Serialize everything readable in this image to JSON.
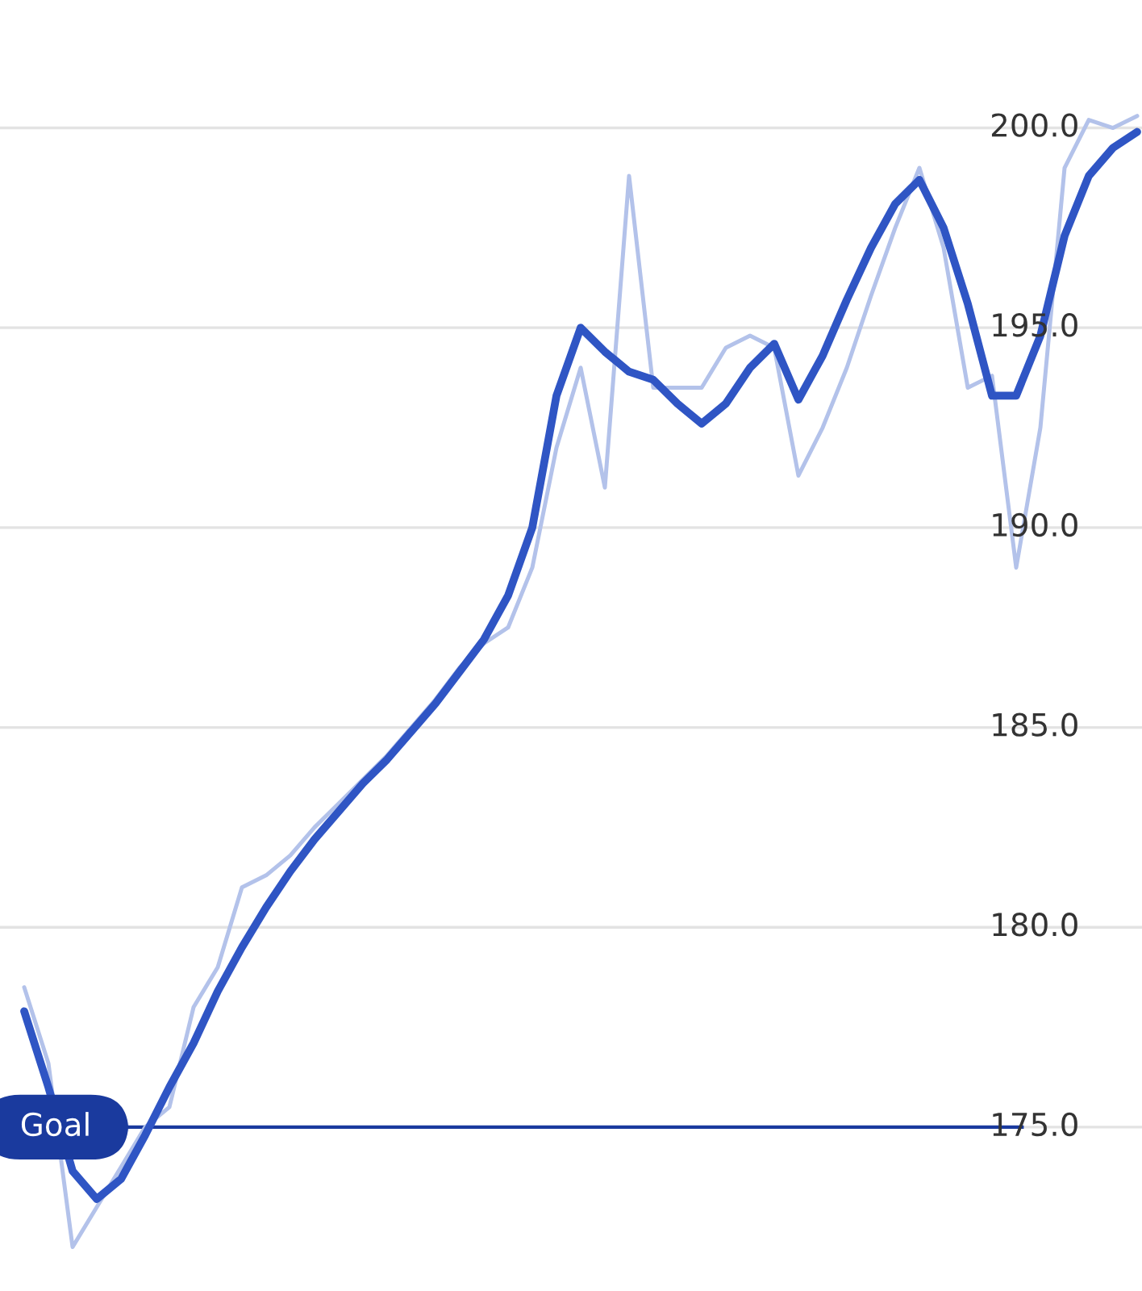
{
  "chart_data": {
    "type": "line",
    "categories": [
      null,
      null,
      null,
      null,
      null,
      null,
      null,
      null,
      null,
      null,
      null,
      null,
      null,
      null,
      null,
      null,
      null,
      null,
      null,
      null,
      null,
      null,
      null,
      null,
      null,
      null,
      null,
      null,
      null,
      null,
      null,
      null,
      null,
      null,
      null,
      null,
      null,
      null,
      null,
      null,
      null,
      null,
      null,
      null,
      null,
      null,
      null
    ],
    "series": [
      {
        "color": "#b3c2ea",
        "values": [
          178.5,
          176.6,
          172.0,
          173.0,
          174.0,
          175.0,
          175.5,
          178.0,
          179.0,
          181.0,
          181.3,
          181.8,
          182.5,
          183.1,
          183.7,
          184.3,
          185.0,
          185.7,
          186.5,
          187.1,
          187.5,
          189.0,
          192.0,
          194.0,
          191.0,
          198.8,
          193.5,
          193.5,
          193.5,
          194.5,
          194.8,
          194.5,
          191.3,
          192.5,
          194.0,
          195.8,
          197.5,
          199.0,
          197.0,
          193.5,
          193.8,
          189.0,
          192.5,
          199.0,
          200.2,
          200.0,
          200.3
        ]
      },
      {
        "color": "#2f55c4",
        "values": [
          177.9,
          176.0,
          173.9,
          173.2,
          173.7,
          174.8,
          176.0,
          177.1,
          178.4,
          179.5,
          180.5,
          181.4,
          182.2,
          182.9,
          183.6,
          184.2,
          184.9,
          185.6,
          186.4,
          187.2,
          188.3,
          190.0,
          193.3,
          195.0,
          194.4,
          193.9,
          193.7,
          193.1,
          192.6,
          193.1,
          194.0,
          194.6,
          193.2,
          194.3,
          195.7,
          197.0,
          198.1,
          198.7,
          197.5,
          195.6,
          193.3,
          193.3,
          194.8,
          197.3,
          198.8,
          199.5,
          199.9
        ]
      }
    ],
    "ylim": [
      170.9,
      203.2
    ],
    "yticks": [
      {
        "value": 175,
        "label": "175.0"
      },
      {
        "value": 180,
        "label": "180.0"
      },
      {
        "value": 185,
        "label": "185.0"
      },
      {
        "value": 190,
        "label": "190.0"
      },
      {
        "value": 195,
        "label": "195.0"
      },
      {
        "value": 200,
        "label": "200.0"
      }
    ],
    "tick_labels": "y",
    "grid": "y",
    "ref_lines": [
      {
        "axis": "y",
        "value": 175,
        "label": "Goal",
        "color": "#1a3a9e"
      }
    ]
  }
}
